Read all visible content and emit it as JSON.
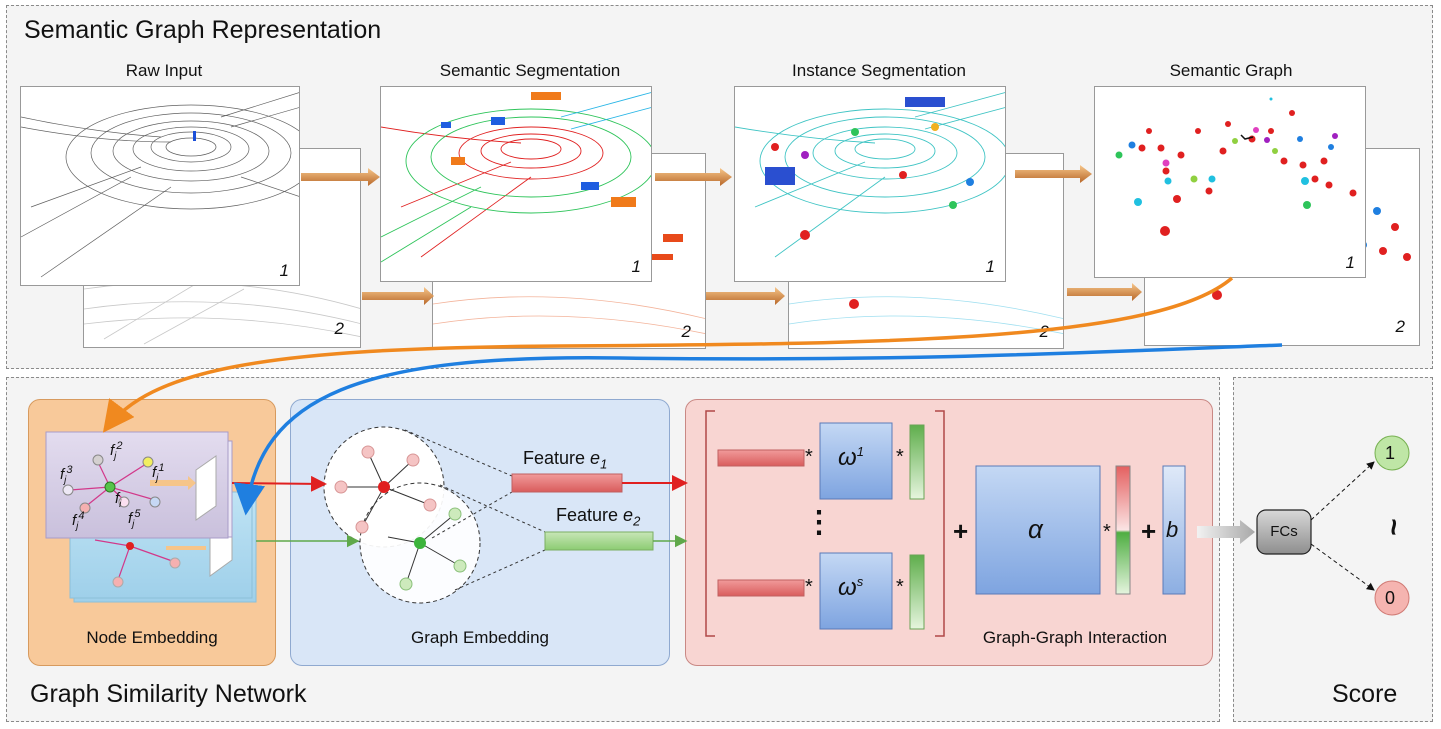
{
  "top_panel": {
    "title": "Semantic Graph Representation",
    "stages": [
      {
        "label": "Raw Input",
        "front_index": "1",
        "back_index": "2"
      },
      {
        "label": "Semantic Segmentation",
        "front_index": "1",
        "back_index": "2"
      },
      {
        "label": "Instance Segmentation",
        "front_index": "1",
        "back_index": "2"
      },
      {
        "label": "Semantic Graph",
        "front_index": "1",
        "back_index": "2"
      }
    ]
  },
  "bottom_panel": {
    "title": "Graph Similarity Network",
    "node_embedding": {
      "label": "Node Embedding",
      "feature_labels": [
        "f",
        "f",
        "f",
        "f",
        "f",
        "f"
      ],
      "feature_subscripts": [
        "j",
        "j",
        "j",
        "j",
        "i",
        "j"
      ],
      "feature_superscripts": [
        "2",
        "3",
        "1",
        "4",
        "",
        "5"
      ]
    },
    "graph_embedding": {
      "label": "Graph Embedding",
      "feature1": {
        "text": "Feature ",
        "var": "e",
        "sub": "1"
      },
      "feature2": {
        "text": "Feature ",
        "var": "e",
        "sub": "2"
      }
    },
    "interaction": {
      "label": "Graph-Graph Interaction",
      "w_top": {
        "var": "ω",
        "sup": "1"
      },
      "w_bottom": {
        "var": "ω",
        "sup": "s"
      },
      "alpha": "α",
      "bias": "b",
      "star": "*",
      "plus": "+",
      "ellipsis": "⋮"
    }
  },
  "score_panel": {
    "title": "Score",
    "fc_label": "FCs",
    "out_high": "1",
    "out_low": "0",
    "tilde": "~"
  },
  "colors": {
    "arrow_orange": "#f0891f",
    "arrow_blue": "#1f7fe0",
    "edge_red": "#e02020",
    "edge_green": "#5fa84a",
    "node_box": "#f8c99a",
    "graph_box": "#d9e6f7",
    "inter_box": "#f8d5d2"
  }
}
